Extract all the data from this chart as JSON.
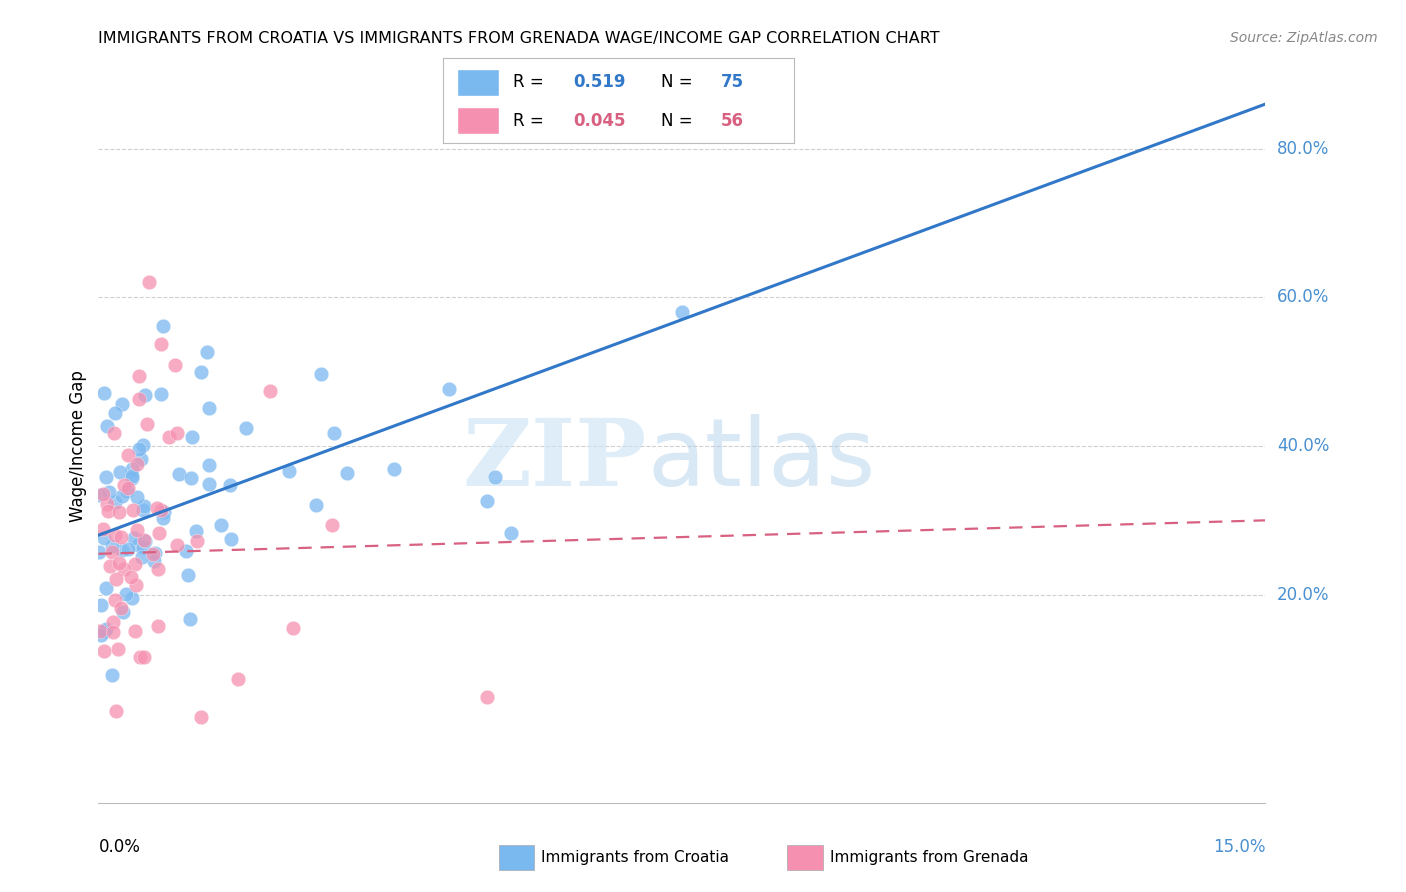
{
  "title": "IMMIGRANTS FROM CROATIA VS IMMIGRANTS FROM GRENADA WAGE/INCOME GAP CORRELATION CHART",
  "source": "Source: ZipAtlas.com",
  "ylabel": "Wage/Income Gap",
  "right_yticks": [
    20.0,
    40.0,
    60.0,
    80.0
  ],
  "xmin": 0.0,
  "xmax": 15.0,
  "ymin": -8.0,
  "ymax": 88.0,
  "croatia_R": 0.519,
  "croatia_N": 75,
  "grenada_R": 0.045,
  "grenada_N": 56,
  "croatia_color": "#7ab8f0",
  "grenada_color": "#f590b0",
  "croatia_line_color": "#3278c8",
  "grenada_line_color": "#d86080",
  "background_color": "#ffffff",
  "grid_color": "#cccccc",
  "right_axis_color": "#4a90d0",
  "croatia_line_x0": 0.0,
  "croatia_line_y0": 28.0,
  "croatia_line_x1": 15.0,
  "croatia_line_y1": 86.0,
  "grenada_line_x0": 0.0,
  "grenada_line_y0": 25.5,
  "grenada_line_x1": 15.0,
  "grenada_line_y1": 30.0
}
